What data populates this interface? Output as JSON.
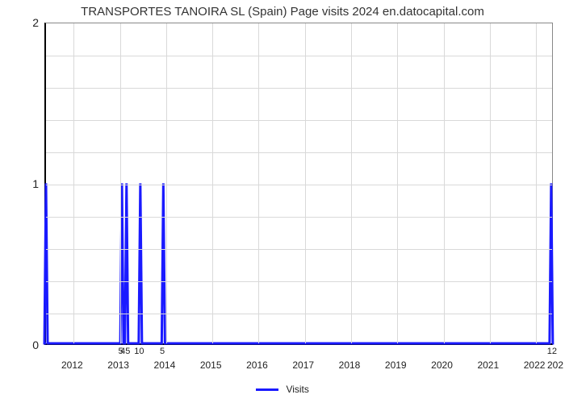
{
  "chart": {
    "type": "line-spike",
    "title": "TRANSPORTES TANOIRA SL (Spain) Page visits 2024 en.datocapital.com",
    "title_fontsize": 15,
    "title_color": "#333333",
    "background_color": "#ffffff",
    "plot_border_color": "#888888",
    "axis_color": "#000000",
    "grid_color": "#d9d9d9",
    "series_color": "#1a1aff",
    "series_width": 3,
    "legend_label": "Visits",
    "ylim": [
      0,
      2
    ],
    "ytick_step_minor": 0.2,
    "yticks_major": [
      0,
      1,
      2
    ],
    "ytick_fontsize": 14,
    "x_year_start": 2011.4,
    "x_year_end": 2022.4,
    "xticks_years": [
      2012,
      2013,
      2014,
      2015,
      2016,
      2017,
      2018,
      2019,
      2020,
      2021,
      2022
    ],
    "xtick_edge_right_label": "202",
    "xtick_fontsize": 12,
    "spikes": [
      {
        "x": 2011.4,
        "value": 1,
        "label": null
      },
      {
        "x": 2013.05,
        "value": 1,
        "label": "5"
      },
      {
        "x": 2013.15,
        "value": 1,
        "label": "45"
      },
      {
        "x": 2013.45,
        "value": 1,
        "label": "10"
      },
      {
        "x": 2013.95,
        "value": 1,
        "label": "5"
      },
      {
        "x": 2022.38,
        "value": 1,
        "label": "12"
      }
    ],
    "vgrid_years": [
      2012,
      2013,
      2014,
      2015,
      2016,
      2017,
      2018,
      2019,
      2020,
      2021,
      2022
    ]
  }
}
